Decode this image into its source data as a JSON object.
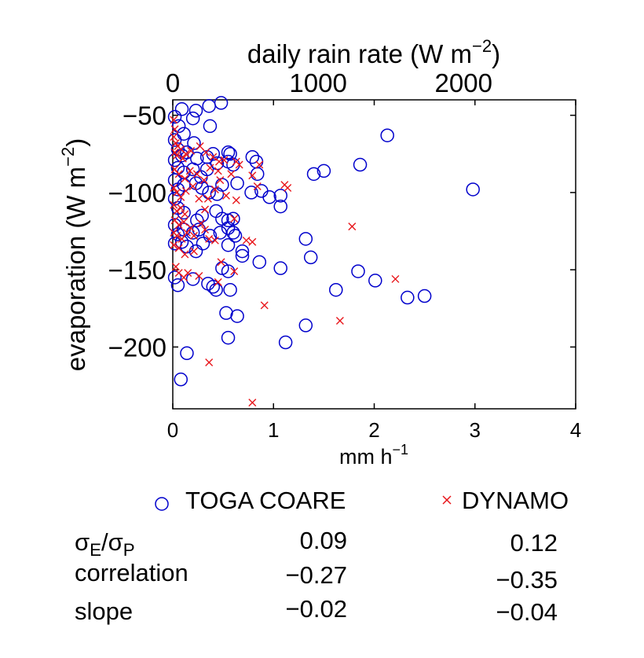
{
  "chart_data": {
    "type": "scatter",
    "title": "",
    "top_axis": {
      "label": "daily rain rate (W m",
      "label_sup": "−2",
      "label_close": ")",
      "ticks": [
        0,
        1000,
        2000
      ],
      "tick_labels": [
        "0",
        "1000",
        "2000"
      ],
      "range": [
        0,
        2771
      ]
    },
    "x_axis": {
      "label": "mm h",
      "label_sup": "−1",
      "range": [
        0,
        4
      ],
      "ticks": [
        0,
        1,
        2,
        3,
        4
      ],
      "tick_labels": [
        "0",
        "1",
        "2",
        "3",
        "4"
      ]
    },
    "y_axis": {
      "label": "evaporation (W m",
      "label_sup": "−2",
      "label_close": ")",
      "range": [
        -240,
        -40
      ],
      "ticks": [
        -50,
        -100,
        -150,
        -200
      ],
      "tick_labels": [
        "−50",
        "−100",
        "−150",
        "−200"
      ]
    },
    "grid": false,
    "series": [
      {
        "name": "TOGA COARE",
        "marker": "circle",
        "color": "#0000cc",
        "points": [
          [
            0.02,
            -51
          ],
          [
            0.09,
            -46
          ],
          [
            0.06,
            -57
          ],
          [
            0.11,
            -62
          ],
          [
            0.2,
            -52
          ],
          [
            0.23,
            -47
          ],
          [
            0.36,
            -44
          ],
          [
            0.48,
            -42
          ],
          [
            0.37,
            -57
          ],
          [
            0.02,
            -66
          ],
          [
            0.05,
            -72
          ],
          [
            0.09,
            -76
          ],
          [
            0.21,
            -68
          ],
          [
            0.14,
            -74
          ],
          [
            0.24,
            -78
          ],
          [
            0.34,
            -77
          ],
          [
            0.4,
            -75
          ],
          [
            0.55,
            -74
          ],
          [
            0.57,
            -75
          ],
          [
            0.02,
            -79
          ],
          [
            0.05,
            -84
          ],
          [
            0.11,
            -87
          ],
          [
            0.2,
            -85
          ],
          [
            0.28,
            -90
          ],
          [
            0.34,
            -85
          ],
          [
            0.44,
            -81
          ],
          [
            0.55,
            -80
          ],
          [
            0.6,
            -82
          ],
          [
            0.79,
            -77
          ],
          [
            0.83,
            -80
          ],
          [
            0.84,
            -88
          ],
          [
            0.02,
            -92
          ],
          [
            0.05,
            -98
          ],
          [
            0.11,
            -95
          ],
          [
            0.23,
            -94
          ],
          [
            0.29,
            -97
          ],
          [
            0.36,
            -100
          ],
          [
            0.44,
            -101
          ],
          [
            0.49,
            -95
          ],
          [
            0.64,
            -94
          ],
          [
            0.78,
            -100
          ],
          [
            0.88,
            -99
          ],
          [
            0.96,
            -103
          ],
          [
            1.07,
            -102
          ],
          [
            1.07,
            -109
          ],
          [
            1.4,
            -88
          ],
          [
            1.5,
            -86
          ],
          [
            1.86,
            -82
          ],
          [
            2.13,
            -63
          ],
          [
            2.98,
            -98
          ],
          [
            0.02,
            -104
          ],
          [
            0.05,
            -110
          ],
          [
            0.11,
            -113
          ],
          [
            0.24,
            -118
          ],
          [
            0.29,
            -115
          ],
          [
            0.43,
            -112
          ],
          [
            0.49,
            -117
          ],
          [
            0.55,
            -118
          ],
          [
            0.6,
            -117
          ],
          [
            0.02,
            -121
          ],
          [
            0.05,
            -127
          ],
          [
            0.11,
            -124
          ],
          [
            0.2,
            -126
          ],
          [
            0.26,
            -124
          ],
          [
            0.37,
            -128
          ],
          [
            0.47,
            -126
          ],
          [
            0.55,
            -123
          ],
          [
            0.6,
            -126
          ],
          [
            0.62,
            -128
          ],
          [
            0.02,
            -133
          ],
          [
            0.09,
            -132
          ],
          [
            0.14,
            -135
          ],
          [
            0.23,
            -138
          ],
          [
            0.3,
            -133
          ],
          [
            0.55,
            -134
          ],
          [
            0.69,
            -138
          ],
          [
            0.69,
            -141
          ],
          [
            0.86,
            -145
          ],
          [
            1.32,
            -130
          ],
          [
            1.37,
            -142
          ],
          [
            0.02,
            -155
          ],
          [
            0.05,
            -160
          ],
          [
            0.2,
            -156
          ],
          [
            0.35,
            -159
          ],
          [
            0.4,
            -161
          ],
          [
            0.43,
            -163
          ],
          [
            0.49,
            -149
          ],
          [
            0.55,
            -151
          ],
          [
            0.57,
            -163
          ],
          [
            1.07,
            -149
          ],
          [
            1.84,
            -151
          ],
          [
            2.01,
            -157
          ],
          [
            1.62,
            -163
          ],
          [
            2.33,
            -168
          ],
          [
            2.5,
            -167
          ],
          [
            0.53,
            -178
          ],
          [
            0.64,
            -180
          ],
          [
            1.32,
            -186
          ],
          [
            0.55,
            -194
          ],
          [
            1.12,
            -197
          ],
          [
            0.14,
            -204
          ],
          [
            0.08,
            -221
          ]
        ]
      },
      {
        "name": "DYNAMO",
        "marker": "x",
        "color": "#e8161b",
        "points": [
          [
            0.01,
            -53
          ],
          [
            0.02,
            -59
          ],
          [
            0.01,
            -64
          ],
          [
            0.03,
            -68
          ],
          [
            0.05,
            -70
          ],
          [
            0.08,
            -72
          ],
          [
            0.02,
            -74
          ],
          [
            0.04,
            -76
          ],
          [
            0.1,
            -78
          ],
          [
            0.13,
            -75
          ],
          [
            0.18,
            -73
          ],
          [
            0.27,
            -70
          ],
          [
            0.33,
            -74
          ],
          [
            0.4,
            -77
          ],
          [
            0.46,
            -80
          ],
          [
            0.51,
            -79
          ],
          [
            0.63,
            -80
          ],
          [
            0.66,
            -82
          ],
          [
            0.86,
            -82
          ],
          [
            0.02,
            -85
          ],
          [
            0.06,
            -88
          ],
          [
            0.12,
            -91
          ],
          [
            0.17,
            -86
          ],
          [
            0.24,
            -88
          ],
          [
            0.31,
            -92
          ],
          [
            0.37,
            -84
          ],
          [
            0.45,
            -86
          ],
          [
            0.47,
            -92
          ],
          [
            0.58,
            -88
          ],
          [
            0.79,
            -89
          ],
          [
            1.11,
            -95
          ],
          [
            0.84,
            -96
          ],
          [
            0.01,
            -97
          ],
          [
            0.04,
            -100
          ],
          [
            0.08,
            -103
          ],
          [
            0.13,
            -99
          ],
          [
            0.2,
            -96
          ],
          [
            0.26,
            -104
          ],
          [
            0.35,
            -104
          ],
          [
            0.42,
            -98
          ],
          [
            0.53,
            -102
          ],
          [
            0.63,
            -105
          ],
          [
            1.14,
            -97
          ],
          [
            0.01,
            -108
          ],
          [
            0.04,
            -112
          ],
          [
            0.08,
            -110
          ],
          [
            0.12,
            -114
          ],
          [
            0.32,
            -111
          ],
          [
            0.61,
            -117
          ],
          [
            0.02,
            -118
          ],
          [
            0.06,
            -121
          ],
          [
            0.11,
            -119
          ],
          [
            0.18,
            -123
          ],
          [
            0.28,
            -120
          ],
          [
            0.01,
            -126
          ],
          [
            0.04,
            -128
          ],
          [
            0.09,
            -130
          ],
          [
            0.14,
            -126
          ],
          [
            0.21,
            -128
          ],
          [
            0.32,
            -124
          ],
          [
            0.36,
            -130
          ],
          [
            0.42,
            -131
          ],
          [
            0.01,
            -134
          ],
          [
            0.06,
            -136
          ],
          [
            0.12,
            -140
          ],
          [
            0.21,
            -138
          ],
          [
            0.03,
            -148
          ],
          [
            0.06,
            -152
          ],
          [
            0.11,
            -155
          ],
          [
            0.15,
            -152
          ],
          [
            0.26,
            -154
          ],
          [
            0.45,
            -158
          ],
          [
            0.48,
            -145
          ],
          [
            0.61,
            -151
          ],
          [
            0.73,
            -131
          ],
          [
            0.79,
            -132
          ],
          [
            0.91,
            -173
          ],
          [
            1.78,
            -122
          ],
          [
            2.21,
            -156
          ],
          [
            1.66,
            -183
          ],
          [
            0.36,
            -210
          ],
          [
            0.79,
            -236
          ]
        ]
      }
    ],
    "legend": {
      "placement": "bottom",
      "entries": [
        "TOGA COARE",
        "DYNAMO"
      ]
    },
    "stats_table": {
      "rows": [
        {
          "name_main": "σ",
          "name_sub1": "E",
          "name_slash": "/σ",
          "name_sub2": "P",
          "toga": "0.09",
          "dynamo": "0.12"
        },
        {
          "name": "correlation",
          "toga": "−0.27",
          "dynamo": "−0.35"
        },
        {
          "name": "slope",
          "toga": "−0.02",
          "dynamo": "−0.04"
        }
      ]
    }
  }
}
